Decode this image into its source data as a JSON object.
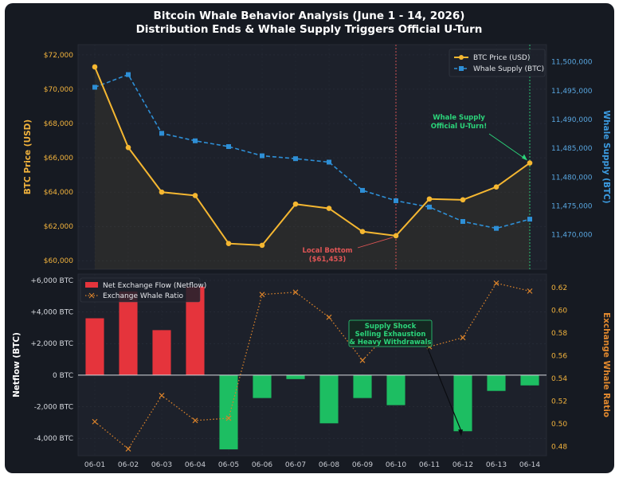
{
  "title_line1": "Bitcoin Whale Behavior Analysis (June 1 - 14, 2026)",
  "title_line2": "Distribution Ends & Whale Supply Triggers Official U-Turn",
  "colors": {
    "background": "#161a22",
    "panel": "#1c2029",
    "price": "#f5b731",
    "supply": "#2e8fd6",
    "inflow": "#e5343c",
    "outflow": "#1dbe62",
    "ratio": "#d9822b",
    "bottom_marker": "#e05555",
    "uturn_marker": "#2bd47a"
  },
  "chart_data": [
    {
      "type": "line",
      "panel": "top",
      "categories": [
        "06-01",
        "06-02",
        "06-03",
        "06-04",
        "06-05",
        "06-06",
        "06-07",
        "06-08",
        "06-09",
        "06-10",
        "06-11",
        "06-12",
        "06-13",
        "06-14"
      ],
      "series": [
        {
          "name": "BTC Price (USD)",
          "axis": "left",
          "values": [
            71300,
            66600,
            64000,
            63800,
            61000,
            60900,
            63300,
            63050,
            61700,
            61453,
            63600,
            63550,
            64300,
            65700
          ]
        },
        {
          "name": "Whale Supply (BTC)",
          "axis": "right",
          "values": [
            11495600,
            11497800,
            11487600,
            11486300,
            11485300,
            11483700,
            11483200,
            11482600,
            11477700,
            11475900,
            11474800,
            11472300,
            11471100,
            11472700
          ]
        }
      ],
      "ylabel_left": "BTC Price (USD)",
      "ylabel_right": "Whale Supply (BTC)",
      "ylim_left": [
        59500,
        72600
      ],
      "ylim_right": [
        11464000,
        11503000
      ],
      "yticks_left": [
        "$60,000",
        "$62,000",
        "$64,000",
        "$66,000",
        "$68,000",
        "$70,000",
        "$72,000"
      ],
      "yticks_left_values": [
        60000,
        62000,
        64000,
        66000,
        68000,
        70000,
        72000
      ],
      "yticks_right": [
        "11,470,000",
        "11,475,000",
        "11,480,000",
        "11,485,000",
        "11,490,000",
        "11,495,000",
        "11,500,000"
      ],
      "yticks_right_values": [
        11470000,
        11475000,
        11480000,
        11485000,
        11490000,
        11495000,
        11500000
      ],
      "legend": "top-right",
      "annotations": [
        {
          "lines": [
            "Local Bottom",
            "($61,453)"
          ],
          "target": "06-10"
        },
        {
          "lines": [
            "Whale Supply",
            "Official U-Turn!"
          ],
          "target": "06-14"
        }
      ]
    },
    {
      "type": "bar",
      "panel": "bottom",
      "categories": [
        "06-01",
        "06-02",
        "06-03",
        "06-04",
        "06-05",
        "06-06",
        "06-07",
        "06-08",
        "06-09",
        "06-10",
        "06-11",
        "06-12",
        "06-13",
        "06-14"
      ],
      "series": [
        {
          "name": "Net Exchange Flow (Netflow)",
          "axis": "left",
          "type": "bar",
          "values": [
            3600,
            5300,
            2850,
            5600,
            -4700,
            -1450,
            -250,
            -3050,
            -1450,
            -1900,
            0,
            -3550,
            -1000,
            -650
          ]
        },
        {
          "name": "Exchange Whale Ratio",
          "axis": "right",
          "type": "line",
          "values": [
            0.502,
            0.478,
            0.525,
            0.503,
            0.505,
            0.614,
            0.616,
            0.594,
            0.556,
            0.587,
            0.568,
            0.576,
            0.624,
            0.617
          ]
        }
      ],
      "ylabel_left": "Netflow (BTC)",
      "ylabel_right": "Exchange Whale Ratio",
      "ylim_left": [
        -5100,
        6400
      ],
      "ylim_right": [
        0.472,
        0.632
      ],
      "yticks_left": [
        "-4,000 BTC",
        "-2,000 BTC",
        "0 BTC",
        "+2,000 BTC",
        "+4,000 BTC",
        "+6,000 BTC"
      ],
      "yticks_left_values": [
        -4000,
        -2000,
        0,
        2000,
        4000,
        6000
      ],
      "yticks_right": [
        "0.48",
        "0.50",
        "0.52",
        "0.54",
        "0.56",
        "0.58",
        "0.60",
        "0.62"
      ],
      "yticks_right_values": [
        0.48,
        0.5,
        0.52,
        0.54,
        0.56,
        0.58,
        0.6,
        0.62
      ],
      "legend": "top-left",
      "annotations": [
        {
          "lines": [
            "Supply Shock",
            "Selling Exhaustion",
            "& Heavy Withdrawals"
          ],
          "target": "06-12"
        }
      ]
    }
  ]
}
